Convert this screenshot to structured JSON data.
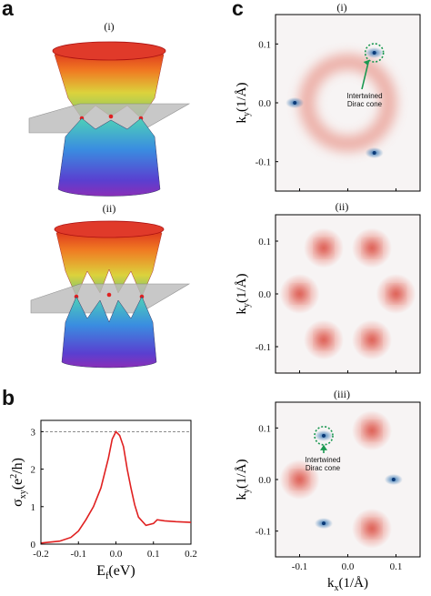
{
  "panel_a": {
    "letter": "a",
    "sub_i": "(i)",
    "sub_ii": "(ii)"
  },
  "panel_b": {
    "letter": "b"
  },
  "panel_c": {
    "letter": "c",
    "sub_i": "(i)",
    "sub_ii": "(ii)",
    "sub_iii": "(iii)",
    "annotation_i": [
      "Intertwined",
      "Dirac cone"
    ],
    "annotation_iii": [
      "Intertwined",
      "Dirac cone"
    ]
  },
  "colors": {
    "curve": "#e02020",
    "red_blob": "#e8675a",
    "blue_blob": "#2a6fb0",
    "arrow": "#1a9850"
  },
  "chart_data": [
    {
      "type": "line",
      "series": [
        {
          "x": [
            -0.2,
            -0.15,
            -0.12,
            -0.1,
            -0.08,
            -0.06,
            -0.04,
            -0.02,
            -0.01,
            0.0,
            0.01,
            0.02,
            0.03,
            0.04,
            0.05,
            0.06,
            0.08,
            0.1,
            0.11,
            0.13,
            0.16,
            0.2
          ],
          "values": [
            0.03,
            0.08,
            0.18,
            0.35,
            0.65,
            1.0,
            1.5,
            2.3,
            2.8,
            3.0,
            2.9,
            2.6,
            2.0,
            1.5,
            1.05,
            0.72,
            0.5,
            0.55,
            0.65,
            0.62,
            0.6,
            0.58
          ]
        }
      ],
      "xlabel": "E_f(eV)",
      "ylabel": "σ_xy(e²/h)",
      "xlim": [
        -0.2,
        0.2
      ],
      "ylim": [
        0,
        3.3
      ],
      "xticks": [
        "-0.2",
        "-0.1",
        "0.0",
        "0.1",
        "0.2"
      ],
      "yticks": [
        "0",
        "1",
        "2",
        "3"
      ],
      "reference_line": 3
    },
    {
      "type": "heatmap",
      "panel": "(i)",
      "xlim": [
        -0.15,
        0.15
      ],
      "ylim": [
        -0.15,
        0.15
      ],
      "yticks": [
        "0.1",
        "0.0",
        "-0.1"
      ],
      "ylabel": "k_y(1/Å)",
      "features": [
        {
          "kind": "ring",
          "kx": 0.0,
          "ky": 0.0,
          "radius": 0.085,
          "sign": "positive"
        },
        {
          "kind": "dirac",
          "kx": 0.055,
          "ky": 0.085,
          "sign": "negative"
        },
        {
          "kind": "dirac",
          "kx": -0.11,
          "ky": 0.0,
          "sign": "negative"
        },
        {
          "kind": "dirac",
          "kx": 0.055,
          "ky": -0.085,
          "sign": "negative"
        }
      ]
    },
    {
      "type": "heatmap",
      "panel": "(ii)",
      "xlim": [
        -0.15,
        0.15
      ],
      "ylim": [
        -0.15,
        0.15
      ],
      "yticks": [
        "0.1",
        "0.0",
        "-0.1"
      ],
      "ylabel": "k_y(1/Å)",
      "features": [
        {
          "kind": "peak",
          "kx": 0.1,
          "ky": 0.0,
          "sign": "positive"
        },
        {
          "kind": "peak",
          "kx": 0.05,
          "ky": 0.087,
          "sign": "positive"
        },
        {
          "kind": "peak",
          "kx": -0.05,
          "ky": 0.087,
          "sign": "positive"
        },
        {
          "kind": "peak",
          "kx": -0.1,
          "ky": 0.0,
          "sign": "positive"
        },
        {
          "kind": "peak",
          "kx": -0.05,
          "ky": -0.087,
          "sign": "positive"
        },
        {
          "kind": "peak",
          "kx": 0.05,
          "ky": -0.087,
          "sign": "positive"
        }
      ]
    },
    {
      "type": "heatmap",
      "panel": "(iii)",
      "xlim": [
        -0.15,
        0.15
      ],
      "ylim": [
        -0.15,
        0.15
      ],
      "xticks": [
        "-0.1",
        "0.0",
        "0.1"
      ],
      "yticks": [
        "0.1",
        "0.0",
        "-0.1"
      ],
      "xlabel": "k_x(1/Å)",
      "ylabel": "k_y(1/Å)",
      "features": [
        {
          "kind": "peak",
          "kx": 0.05,
          "ky": 0.095,
          "sign": "positive"
        },
        {
          "kind": "peak",
          "kx": -0.1,
          "ky": 0.0,
          "sign": "positive"
        },
        {
          "kind": "peak",
          "kx": 0.05,
          "ky": -0.095,
          "sign": "positive"
        },
        {
          "kind": "dirac",
          "kx": -0.05,
          "ky": 0.085,
          "sign": "negative"
        },
        {
          "kind": "dirac",
          "kx": 0.095,
          "ky": 0.0,
          "sign": "negative"
        },
        {
          "kind": "dirac",
          "kx": -0.05,
          "ky": -0.085,
          "sign": "negative"
        }
      ]
    }
  ]
}
